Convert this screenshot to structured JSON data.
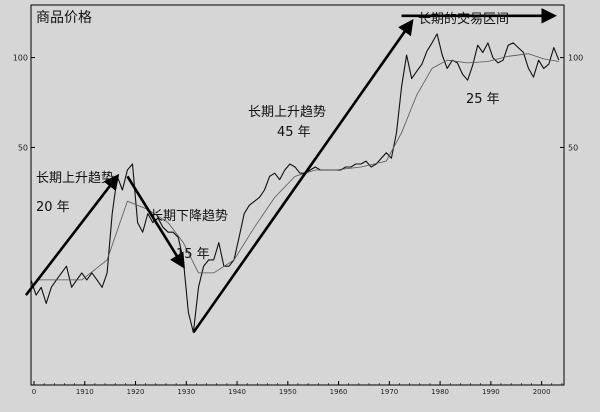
{
  "chart_data": {
    "type": "line",
    "title": "商品价格",
    "xlabel": "",
    "ylabel": "",
    "x_ticks": [
      "0",
      "1910",
      "1920",
      "1930",
      "1940",
      "1950",
      "1960",
      "1970",
      "1980",
      "1990",
      "2000"
    ],
    "y_ticks": [
      100,
      50
    ],
    "y_scale": "log",
    "ylim": [
      8,
      150
    ],
    "xlim": [
      1900,
      2005
    ],
    "grid": false,
    "series": [
      {
        "kind": "price",
        "points": [
          [
            1900,
            18
          ],
          [
            1901,
            16
          ],
          [
            1902,
            17
          ],
          [
            1903,
            15
          ],
          [
            1904,
            17
          ],
          [
            1905,
            18
          ],
          [
            1906,
            19
          ],
          [
            1907,
            20
          ],
          [
            1908,
            17
          ],
          [
            1909,
            18
          ],
          [
            1910,
            19
          ],
          [
            1911,
            18
          ],
          [
            1912,
            19
          ],
          [
            1913,
            18
          ],
          [
            1914,
            17
          ],
          [
            1915,
            19
          ],
          [
            1916,
            30
          ],
          [
            1917,
            40
          ],
          [
            1918,
            36
          ],
          [
            1919,
            42
          ],
          [
            1920,
            44
          ],
          [
            1921,
            28
          ],
          [
            1922,
            26
          ],
          [
            1923,
            30
          ],
          [
            1924,
            28
          ],
          [
            1925,
            29
          ],
          [
            1926,
            27
          ],
          [
            1927,
            26
          ],
          [
            1928,
            26
          ],
          [
            1929,
            25
          ],
          [
            1930,
            21
          ],
          [
            1931,
            14
          ],
          [
            1932,
            12
          ],
          [
            1933,
            17
          ],
          [
            1934,
            20
          ],
          [
            1935,
            21
          ],
          [
            1936,
            21
          ],
          [
            1937,
            24
          ],
          [
            1938,
            20
          ],
          [
            1939,
            20
          ],
          [
            1940,
            21
          ],
          [
            1941,
            25
          ],
          [
            1942,
            30
          ],
          [
            1943,
            32
          ],
          [
            1944,
            33
          ],
          [
            1945,
            34
          ],
          [
            1946,
            36
          ],
          [
            1947,
            40
          ],
          [
            1948,
            41
          ],
          [
            1949,
            39
          ],
          [
            1950,
            42
          ],
          [
            1951,
            44
          ],
          [
            1952,
            43
          ],
          [
            1953,
            41
          ],
          [
            1954,
            41
          ],
          [
            1955,
            42
          ],
          [
            1956,
            43
          ],
          [
            1957,
            42
          ],
          [
            1958,
            42
          ],
          [
            1959,
            42
          ],
          [
            1960,
            42
          ],
          [
            1961,
            42
          ],
          [
            1962,
            43
          ],
          [
            1963,
            43
          ],
          [
            1964,
            44
          ],
          [
            1965,
            44
          ],
          [
            1966,
            45
          ],
          [
            1967,
            43
          ],
          [
            1968,
            44
          ],
          [
            1969,
            46
          ],
          [
            1970,
            48
          ],
          [
            1971,
            46
          ],
          [
            1972,
            56
          ],
          [
            1973,
            80
          ],
          [
            1974,
            102
          ],
          [
            1975,
            85
          ],
          [
            1976,
            90
          ],
          [
            1977,
            95
          ],
          [
            1978,
            105
          ],
          [
            1979,
            112
          ],
          [
            1980,
            120
          ],
          [
            1981,
            102
          ],
          [
            1982,
            92
          ],
          [
            1983,
            98
          ],
          [
            1984,
            96
          ],
          [
            1985,
            88
          ],
          [
            1986,
            84
          ],
          [
            1987,
            94
          ],
          [
            1988,
            110
          ],
          [
            1989,
            104
          ],
          [
            1990,
            112
          ],
          [
            1991,
            100
          ],
          [
            1992,
            96
          ],
          [
            1993,
            98
          ],
          [
            1994,
            110
          ],
          [
            1995,
            112
          ],
          [
            1996,
            108
          ],
          [
            1997,
            104
          ],
          [
            1998,
            92
          ],
          [
            1999,
            86
          ],
          [
            2000,
            98
          ],
          [
            2001,
            92
          ],
          [
            2002,
            95
          ],
          [
            2003,
            108
          ],
          [
            2004,
            98
          ]
        ]
      },
      {
        "kind": "moving_average",
        "points": [
          [
            1901,
            18
          ],
          [
            1905,
            18
          ],
          [
            1910,
            18
          ],
          [
            1915,
            21
          ],
          [
            1919,
            33
          ],
          [
            1923,
            31
          ],
          [
            1927,
            28
          ],
          [
            1930,
            24
          ],
          [
            1933,
            19
          ],
          [
            1936,
            19
          ],
          [
            1940,
            21
          ],
          [
            1944,
            27
          ],
          [
            1948,
            34
          ],
          [
            1952,
            40
          ],
          [
            1956,
            42
          ],
          [
            1960,
            42
          ],
          [
            1965,
            43
          ],
          [
            1970,
            45
          ],
          [
            1973,
            56
          ],
          [
            1976,
            75
          ],
          [
            1979,
            92
          ],
          [
            1982,
            98
          ],
          [
            1986,
            96
          ],
          [
            1990,
            97
          ],
          [
            1994,
            101
          ],
          [
            1998,
            103
          ],
          [
            2001,
            99
          ],
          [
            2004,
            97
          ]
        ]
      }
    ],
    "annotations": [
      {
        "label": "长期上升趋势",
        "sublabel": "20 年"
      },
      {
        "label": "长期下降趋势",
        "sublabel": "15 年"
      },
      {
        "label": "长期上升趋势",
        "sublabel": "45 年"
      },
      {
        "label": "长期的交易区间",
        "sublabel": "25 年"
      }
    ],
    "trend_arrows": [
      {
        "from": [
          1899,
          16
        ],
        "to": [
          1917,
          40
        ]
      },
      {
        "from": [
          1919,
          40
        ],
        "to": [
          1930,
          20
        ]
      },
      {
        "from": [
          1932,
          12
        ],
        "to": [
          1975,
          132
        ]
      },
      {
        "from": [
          1973,
          138
        ],
        "to": [
          2003,
          138
        ]
      }
    ]
  }
}
